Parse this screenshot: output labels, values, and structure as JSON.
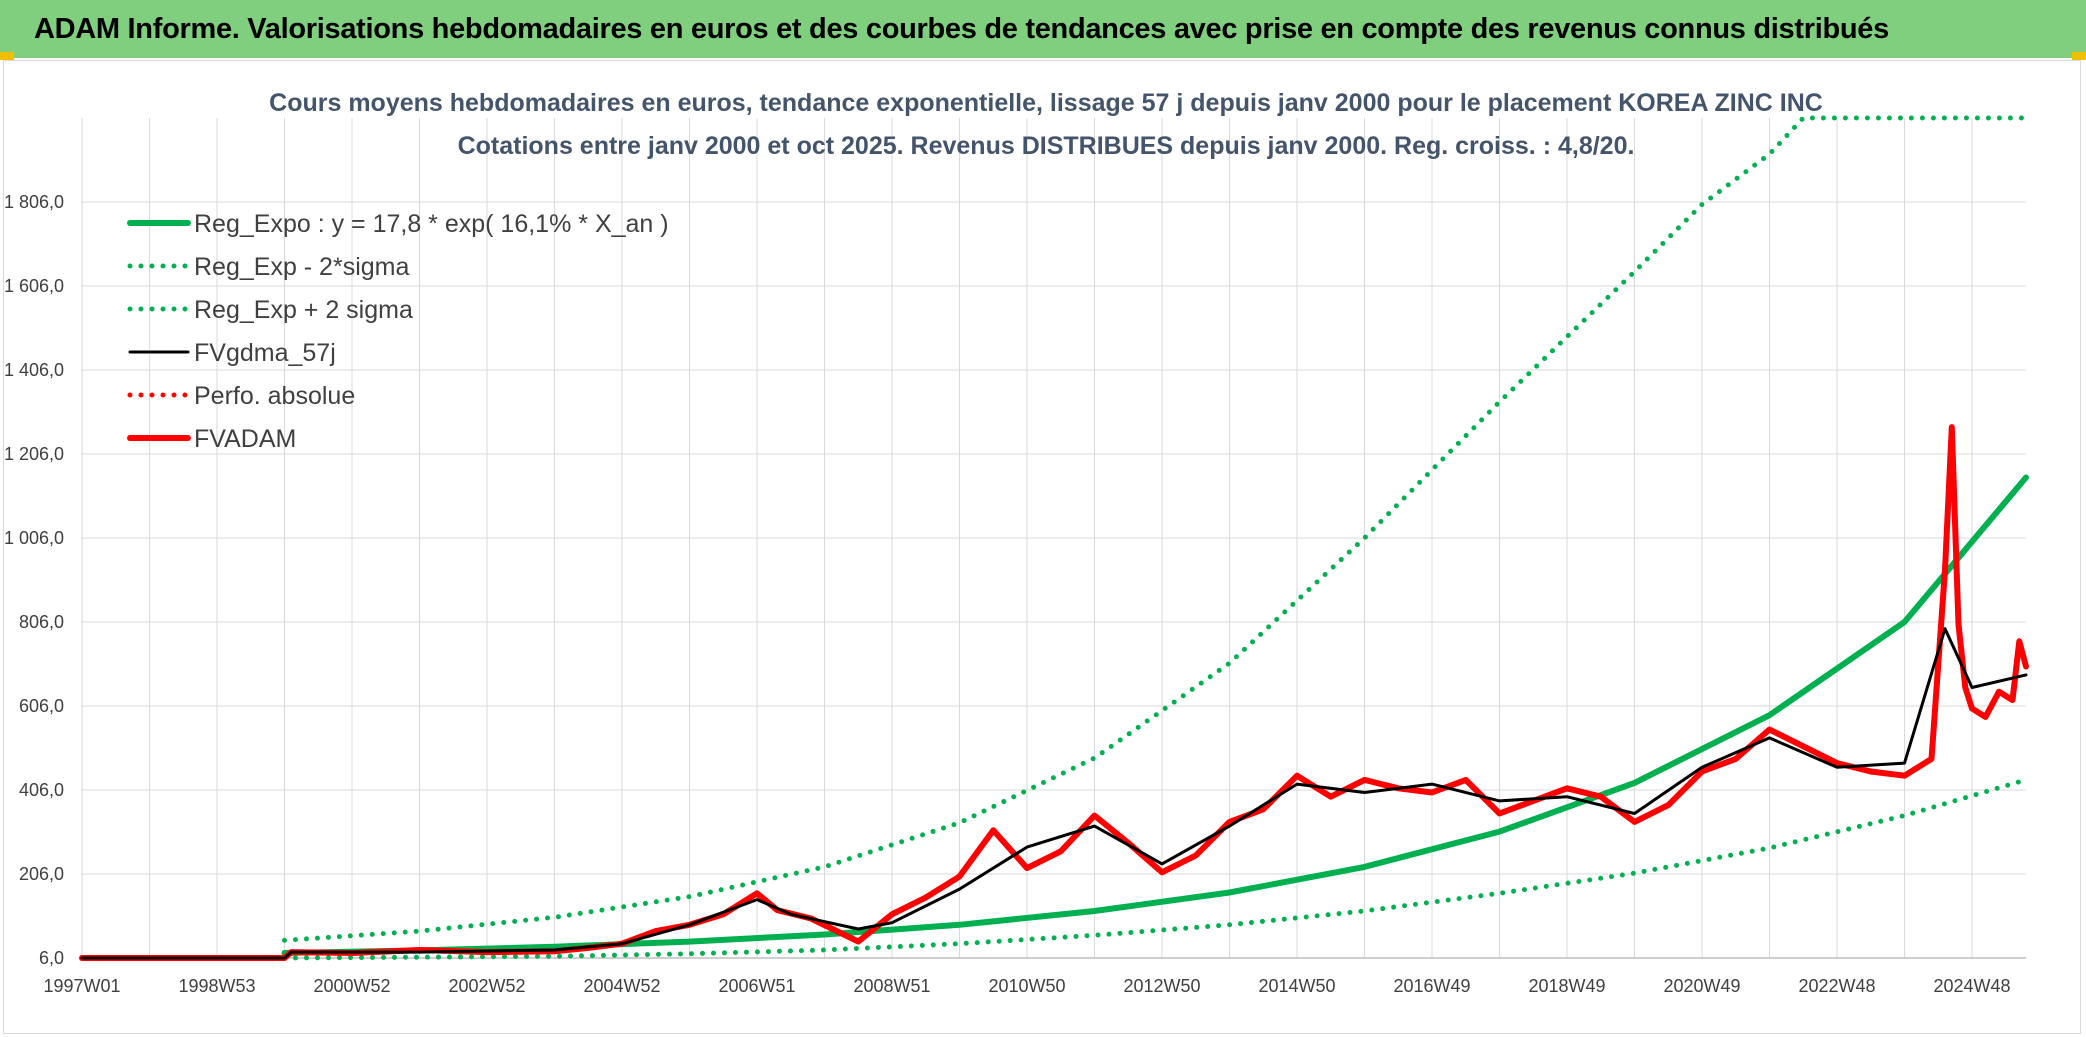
{
  "banner": {
    "title": "ADAM Informe. Valorisations hebdomadaires en euros et des courbes de tendances avec prise en compte des revenus connus distribués"
  },
  "colors": {
    "banner_bg": "#7fcf7f",
    "trend": "#00b050",
    "gdma": "#000000",
    "adam": "#ff0000",
    "grid": "#d9d9d9"
  },
  "chart_data": {
    "type": "line",
    "title": "Cours moyens hebdomadaires en euros, tendance exponentielle, lissage 57 j depuis janv 2000 pour le placement KOREA ZINC INC",
    "subtitle": "Cotations entre janv 2000 et oct 2025. Revenus DISTRIBUES depuis janv 2000. Reg. croiss. : 4,8/20.",
    "xlabel": "",
    "ylabel": "",
    "x_range": [
      1997.0,
      2025.8
    ],
    "ylim": [
      6,
      2006
    ],
    "y_ticks": [
      6,
      206,
      406,
      606,
      806,
      1006,
      1206,
      1406,
      1606,
      1806
    ],
    "y_tick_labels": [
      "6,0",
      "206,0",
      "406,0",
      "606,0",
      "806,0",
      "1 006,0",
      "1 206,0",
      "1 406,0",
      "1 606,0",
      "1 806,0"
    ],
    "x_ticks": [
      1997.0,
      1999.0,
      2001.0,
      2003.0,
      2005.0,
      2007.0,
      2009.0,
      2011.0,
      2013.0,
      2015.0,
      2017.0,
      2019.0,
      2021.0,
      2023.0,
      2025.0
    ],
    "x_tick_labels": [
      "1997W01",
      "1998W53",
      "2000W52",
      "2002W52",
      "2004W52",
      "2006W51",
      "2008W51",
      "2010W50",
      "2012W50",
      "2014W50",
      "2016W49",
      "2018W49",
      "2020W49",
      "2022W48",
      "2024W48"
    ],
    "grid": true,
    "legend_position": "top-left",
    "series": [
      {
        "name": "Reg_Expo : y = 17,8 * exp( 16,1% *  X_an )",
        "style": "solid-thick",
        "color": "#00b050",
        "x": [
          2000.0,
          2002.0,
          2004.0,
          2006.0,
          2008.0,
          2010.0,
          2012.0,
          2014.0,
          2016.0,
          2018.0,
          2020.0,
          2022.0,
          2024.0,
          2025.8
        ],
        "values": [
          18,
          24,
          33,
          45,
          62,
          85,
          118,
          162,
          223,
          307,
          423,
          584,
          806,
          1150
        ]
      },
      {
        "name": "Reg_Exp - 2*sigma",
        "style": "dotted",
        "color": "#00b050",
        "x": [
          2000.0,
          2002.0,
          2004.0,
          2006.0,
          2008.0,
          2010.0,
          2012.0,
          2014.0,
          2016.0,
          2018.0,
          2020.0,
          2022.0,
          2024.0,
          2025.8
        ],
        "values": [
          6,
          8,
          10,
          16,
          25,
          40,
          60,
          85,
          118,
          160,
          208,
          268,
          345,
          430
        ]
      },
      {
        "name": "Reg_Exp + 2 sigma",
        "style": "dotted",
        "color": "#00b050",
        "x": [
          2000.0,
          2002.0,
          2004.0,
          2006.0,
          2008.0,
          2010.0,
          2012.0,
          2014.0,
          2016.0,
          2018.0,
          2020.0,
          2021.0,
          2022.0,
          2022.5,
          2025.8
        ],
        "values": [
          48,
          70,
          103,
          152,
          223,
          328,
          482,
          708,
          1006,
          1330,
          1640,
          1800,
          1920,
          2006,
          2006
        ]
      },
      {
        "name": "FVgdma_57j",
        "style": "solid",
        "color": "#000000",
        "x": [
          1997.0,
          2000.0,
          2000.1,
          2002.0,
          2004.0,
          2005.0,
          2006.0,
          2007.0,
          2007.5,
          2008.5,
          2009.0,
          2010.0,
          2011.0,
          2012.0,
          2013.0,
          2014.0,
          2015.0,
          2016.0,
          2017.0,
          2018.0,
          2019.0,
          2020.0,
          2021.0,
          2022.0,
          2023.0,
          2024.0,
          2024.6,
          2025.0,
          2025.8
        ],
        "values": [
          6,
          6,
          20,
          20,
          25,
          40,
          85,
          145,
          110,
          75,
          90,
          170,
          270,
          320,
          230,
          320,
          420,
          400,
          420,
          380,
          390,
          350,
          460,
          530,
          460,
          470,
          790,
          650,
          680
        ]
      },
      {
        "name": "Perfo. absolue",
        "style": "dotted",
        "color": "#ff0000",
        "x": [],
        "values": []
      },
      {
        "name": "FVADAM",
        "style": "solid-thick",
        "color": "#ff0000",
        "x": [
          1997.0,
          2000.0,
          2000.1,
          2001.0,
          2002.0,
          2003.0,
          2004.0,
          2004.5,
          2005.0,
          2005.5,
          2006.0,
          2006.5,
          2007.0,
          2007.3,
          2007.8,
          2008.5,
          2009.0,
          2009.5,
          2010.0,
          2010.5,
          2011.0,
          2011.5,
          2012.0,
          2012.5,
          2013.0,
          2013.5,
          2014.0,
          2014.5,
          2015.0,
          2015.5,
          2016.0,
          2016.5,
          2017.0,
          2017.5,
          2018.0,
          2018.5,
          2019.0,
          2019.5,
          2020.0,
          2020.5,
          2021.0,
          2021.5,
          2022.0,
          2022.5,
          2023.0,
          2023.5,
          2024.0,
          2024.4,
          2024.6,
          2024.7,
          2024.8,
          2024.9,
          2025.0,
          2025.2,
          2025.4,
          2025.6,
          2025.7,
          2025.8
        ],
        "values": [
          6,
          6,
          20,
          18,
          25,
          20,
          22,
          30,
          40,
          70,
          85,
          110,
          160,
          120,
          100,
          45,
          110,
          150,
          200,
          310,
          220,
          260,
          345,
          280,
          210,
          250,
          330,
          360,
          440,
          390,
          430,
          410,
          400,
          430,
          350,
          380,
          410,
          390,
          330,
          370,
          450,
          480,
          550,
          510,
          470,
          450,
          440,
          480,
          930,
          1270,
          800,
          650,
          600,
          580,
          640,
          620,
          760,
          700
        ]
      }
    ]
  }
}
